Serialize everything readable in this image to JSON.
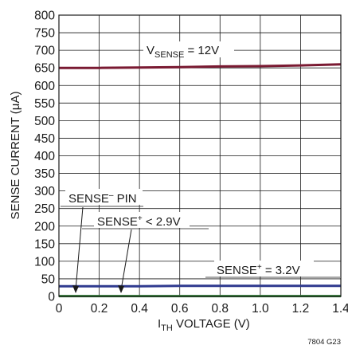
{
  "chart_data": {
    "type": "line",
    "code": "7804 G23",
    "xlabel": {
      "main": "I",
      "sub": "TH",
      "rest": " VOLTAGE (V)"
    },
    "ylabel": "SENSE CURRENT (μA)",
    "xlim": [
      0,
      1.4
    ],
    "ylim": [
      0,
      800
    ],
    "x_ticks": [
      0,
      0.2,
      0.4,
      0.6,
      0.8,
      1.0,
      1.2,
      1.4
    ],
    "x_tick_labels": [
      "0",
      "0.2",
      "0.4",
      "0.6",
      "0.8",
      "1.0",
      "1.2",
      "1.4"
    ],
    "y_ticks": [
      0,
      50,
      100,
      150,
      200,
      250,
      300,
      350,
      400,
      450,
      500,
      550,
      600,
      650,
      700,
      750,
      800
    ],
    "y_tick_labels": [
      "0",
      "50",
      "100",
      "150",
      "200",
      "250",
      "300",
      "350",
      "400",
      "450",
      "500",
      "550",
      "600",
      "650",
      "700",
      "750",
      "800"
    ],
    "grid": true,
    "series": [
      {
        "color": "#7a1a32",
        "x": [
          0,
          0.2,
          0.4,
          0.6,
          0.8,
          1.0,
          1.2,
          1.4
        ],
        "y": [
          650,
          650,
          651,
          652,
          654,
          655,
          657,
          660
        ]
      },
      {
        "color": "#2f3a8f",
        "x": [
          0,
          0.2,
          0.4,
          0.6,
          0.8,
          1.0,
          1.2,
          1.4
        ],
        "y": [
          29,
          29,
          29,
          30,
          30,
          30,
          30,
          30
        ]
      },
      {
        "color": "#2e7d32",
        "x": [
          0,
          0.2,
          0.4,
          0.6,
          0.8,
          1.0,
          1.2,
          1.4
        ],
        "y": [
          1,
          1,
          1,
          1,
          1,
          1,
          1,
          1
        ]
      }
    ],
    "annotations": {
      "vsense": {
        "main": "V",
        "sub": "SENSE",
        "rest": " = 12V"
      },
      "sense_plus_32": {
        "main": "SENSE",
        "sup": "+",
        "rest": " = 3.2V"
      },
      "sense_minus_pin": {
        "main": "SENSE",
        "sup": "–",
        "rest": " PIN"
      },
      "sense_plus_29": {
        "main": "SENSE",
        "sup": "+",
        "rest": " < 2.9V"
      }
    }
  }
}
